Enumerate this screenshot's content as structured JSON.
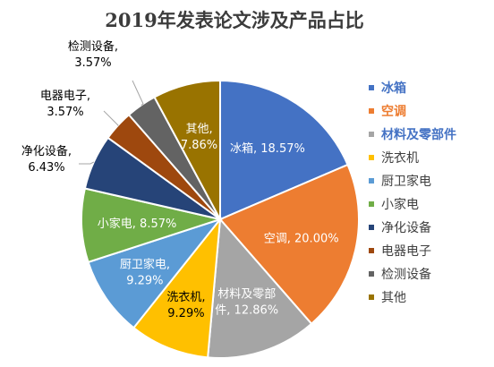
{
  "chart_data": {
    "type": "pie",
    "title": "2019年发表论文涉及产品占比",
    "legend_position": "right",
    "series": [
      {
        "name": "冰箱",
        "value": 18.57,
        "pct_label": "18.57%",
        "color": "#4472C4",
        "label_inside": true,
        "label_color": "#ffffff"
      },
      {
        "name": "空调",
        "value": 20.0,
        "pct_label": "20.00%",
        "color": "#ED7D31",
        "label_inside": true,
        "label_color": "#ffffff"
      },
      {
        "name": "材料及零部件",
        "value": 12.86,
        "pct_label": "12.86%",
        "color": "#A5A5A5",
        "label_inside": true,
        "label_color": "#ffffff",
        "label_lines": [
          "材料及零部",
          "件, 12.86%"
        ]
      },
      {
        "name": "洗衣机",
        "value": 9.29,
        "pct_label": "9.29%",
        "color": "#FFC000",
        "label_inside": true,
        "label_color": "#000000",
        "label_lines": [
          "洗衣机,",
          "9.29%"
        ]
      },
      {
        "name": "厨卫家电",
        "value": 9.29,
        "pct_label": "9.29%",
        "color": "#5B9BD5",
        "label_inside": true,
        "label_color": "#ffffff",
        "label_lines": [
          "厨卫家电,",
          "9.29%"
        ]
      },
      {
        "name": "小家电",
        "value": 8.57,
        "pct_label": "8.57%",
        "color": "#70AD47",
        "label_inside": true,
        "label_color": "#ffffff"
      },
      {
        "name": "净化设备",
        "value": 6.43,
        "pct_label": "6.43%",
        "color": "#264478",
        "label_inside": false,
        "label_color": "#000000",
        "label_lines": [
          "净化设备,",
          "6.43%"
        ]
      },
      {
        "name": "电器电子",
        "value": 3.57,
        "pct_label": "3.57%",
        "color": "#9E480E",
        "label_inside": false,
        "label_color": "#000000",
        "label_lines": [
          "电器电子,",
          "3.57%"
        ]
      },
      {
        "name": "检测设备",
        "value": 3.57,
        "pct_label": "3.57%",
        "color": "#636363",
        "label_inside": false,
        "label_color": "#000000",
        "label_lines": [
          "检测设备,",
          "3.57%"
        ]
      },
      {
        "name": "其他",
        "value": 7.86,
        "pct_label": "7.86%",
        "color": "#997300",
        "label_inside": true,
        "label_color": "#ffffff",
        "label_lines": [
          "其他,",
          "7.86%"
        ]
      }
    ]
  }
}
